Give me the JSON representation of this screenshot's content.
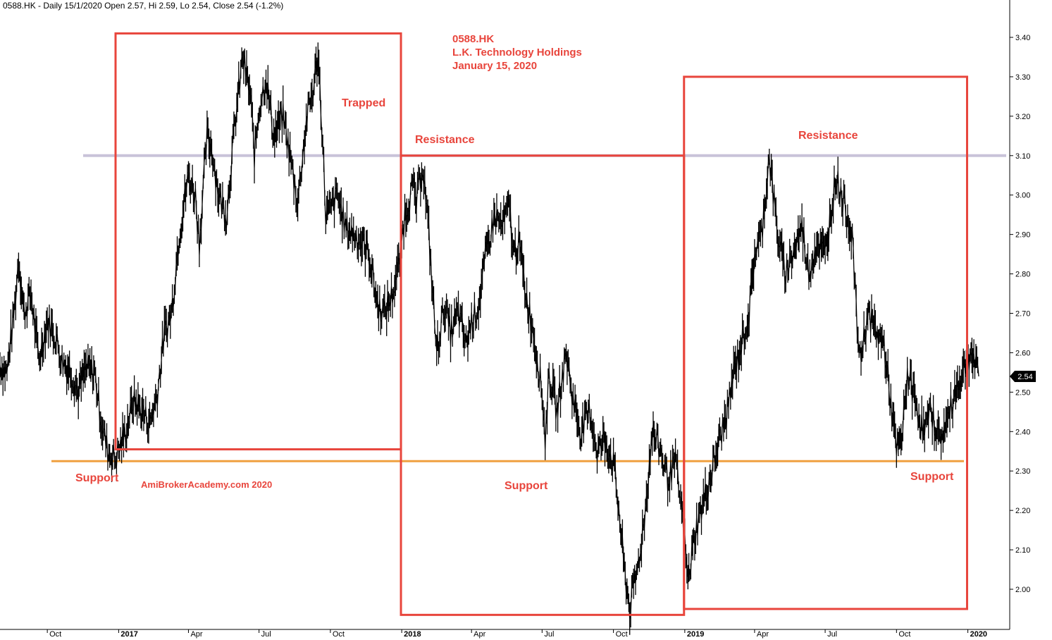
{
  "header": "0588.HK - Daily 15/1/2020 Open 2.57, Hi 2.59, Lo 2.54, Close 2.54 (-1.2%)",
  "annotations": {
    "ticker": "0588.HK",
    "company": "L.K. Technology Holdings",
    "date": "January 15, 2020",
    "watermark": "AmiBrokerAcademy.com   2020",
    "trapped": "Trapped",
    "resistance": "Resistance",
    "support": "Support"
  },
  "colors": {
    "box": "#e8453c",
    "resistance_line": "#c9c3d9",
    "support_line": "#f0a040",
    "price": "#000000",
    "text": "#e8453c"
  },
  "chart_data": {
    "type": "line",
    "title": "0588.HK",
    "y_axis": {
      "range": [
        1.93,
        3.45
      ],
      "ticks": [
        "2.00",
        "2.10",
        "2.20",
        "2.30",
        "2.40",
        "2.50",
        "2.60",
        "2.70",
        "2.80",
        "2.90",
        "3.00",
        "3.10",
        "3.20",
        "3.30",
        "3.40"
      ]
    },
    "x_axis": {
      "range": [
        "2016-08-01",
        "2020-01-25"
      ],
      "ticks": [
        {
          "label": "Oct",
          "date": "2016-10-01",
          "year": false
        },
        {
          "label": "2017",
          "date": "2017-01-01",
          "year": true
        },
        {
          "label": "Apr",
          "date": "2017-04-01",
          "year": false
        },
        {
          "label": "Jul",
          "date": "2017-07-01",
          "year": false
        },
        {
          "label": "Oct",
          "date": "2017-10-01",
          "year": false
        },
        {
          "label": "2018",
          "date": "2018-01-01",
          "year": true
        },
        {
          "label": "Apr",
          "date": "2018-04-01",
          "year": false
        },
        {
          "label": "Jul",
          "date": "2018-07-01",
          "year": false
        },
        {
          "label": "Oct",
          "date": "2018-10-01",
          "year": false
        },
        {
          "label": "2019",
          "date": "2019-01-01",
          "year": true
        },
        {
          "label": "Apr",
          "date": "2019-04-01",
          "year": false
        },
        {
          "label": "Jul",
          "date": "2019-07-01",
          "year": false
        },
        {
          "label": "Oct",
          "date": "2019-10-01",
          "year": false
        },
        {
          "label": "2020",
          "date": "2020-01-01",
          "year": true
        }
      ]
    },
    "last_price": "2.54",
    "series": [
      {
        "points": [
          [
            "2016-08-01",
            2.57
          ],
          [
            "2016-08-10",
            2.55
          ],
          [
            "2016-08-20",
            2.72
          ],
          [
            "2016-08-25",
            2.84
          ],
          [
            "2016-09-01",
            2.7
          ],
          [
            "2016-09-10",
            2.75
          ],
          [
            "2016-09-20",
            2.58
          ],
          [
            "2016-10-01",
            2.68
          ],
          [
            "2016-10-10",
            2.65
          ],
          [
            "2016-10-20",
            2.58
          ],
          [
            "2016-11-01",
            2.55
          ],
          [
            "2016-11-10",
            2.5
          ],
          [
            "2016-11-20",
            2.56
          ],
          [
            "2016-12-01",
            2.55
          ],
          [
            "2016-12-10",
            2.42
          ],
          [
            "2016-12-18",
            2.35
          ],
          [
            "2016-12-28",
            2.33
          ],
          [
            "2017-01-10",
            2.4
          ],
          [
            "2017-01-20",
            2.48
          ],
          [
            "2017-02-01",
            2.45
          ],
          [
            "2017-02-10",
            2.42
          ],
          [
            "2017-02-20",
            2.5
          ],
          [
            "2017-03-01",
            2.65
          ],
          [
            "2017-03-10",
            2.7
          ],
          [
            "2017-03-20",
            2.9
          ],
          [
            "2017-04-01",
            3.05
          ],
          [
            "2017-04-10",
            3.0
          ],
          [
            "2017-04-15",
            2.88
          ],
          [
            "2017-04-25",
            3.15
          ],
          [
            "2017-05-01",
            3.12
          ],
          [
            "2017-05-10",
            3.0
          ],
          [
            "2017-05-20",
            2.95
          ],
          [
            "2017-06-01",
            3.2
          ],
          [
            "2017-06-10",
            3.35
          ],
          [
            "2017-06-20",
            3.25
          ],
          [
            "2017-06-25",
            3.1
          ],
          [
            "2017-07-01",
            3.22
          ],
          [
            "2017-07-10",
            3.3
          ],
          [
            "2017-07-20",
            3.15
          ],
          [
            "2017-08-01",
            3.2
          ],
          [
            "2017-08-10",
            3.1
          ],
          [
            "2017-08-20",
            2.98
          ],
          [
            "2017-08-25",
            3.08
          ],
          [
            "2017-09-01",
            3.2
          ],
          [
            "2017-09-10",
            3.28
          ],
          [
            "2017-09-15",
            3.36
          ],
          [
            "2017-09-20",
            3.18
          ],
          [
            "2017-09-25",
            2.95
          ],
          [
            "2017-10-01",
            2.96
          ],
          [
            "2017-10-10",
            3.0
          ],
          [
            "2017-10-20",
            2.92
          ],
          [
            "2017-11-01",
            2.9
          ],
          [
            "2017-11-10",
            2.88
          ],
          [
            "2017-11-20",
            2.85
          ],
          [
            "2017-12-01",
            2.72
          ],
          [
            "2017-12-10",
            2.7
          ],
          [
            "2017-12-20",
            2.75
          ],
          [
            "2017-12-28",
            2.82
          ],
          [
            "2018-01-05",
            2.95
          ],
          [
            "2018-01-15",
            3.02
          ],
          [
            "2018-01-20",
            2.98
          ],
          [
            "2018-01-28",
            3.08
          ],
          [
            "2018-02-05",
            2.9
          ],
          [
            "2018-02-10",
            2.75
          ],
          [
            "2018-02-15",
            2.6
          ],
          [
            "2018-02-25",
            2.72
          ],
          [
            "2018-03-05",
            2.65
          ],
          [
            "2018-03-15",
            2.7
          ],
          [
            "2018-03-25",
            2.62
          ],
          [
            "2018-04-01",
            2.68
          ],
          [
            "2018-04-10",
            2.72
          ],
          [
            "2018-04-20",
            2.85
          ],
          [
            "2018-05-01",
            2.95
          ],
          [
            "2018-05-10",
            2.92
          ],
          [
            "2018-05-20",
            2.97
          ],
          [
            "2018-05-25",
            2.85
          ],
          [
            "2018-06-01",
            2.88
          ],
          [
            "2018-06-10",
            2.75
          ],
          [
            "2018-06-20",
            2.65
          ],
          [
            "2018-07-01",
            2.5
          ],
          [
            "2018-07-05",
            2.38
          ],
          [
            "2018-07-10",
            2.55
          ],
          [
            "2018-07-20",
            2.45
          ],
          [
            "2018-08-01",
            2.6
          ],
          [
            "2018-08-10",
            2.48
          ],
          [
            "2018-08-20",
            2.4
          ],
          [
            "2018-09-01",
            2.45
          ],
          [
            "2018-09-10",
            2.35
          ],
          [
            "2018-09-20",
            2.38
          ],
          [
            "2018-10-01",
            2.32
          ],
          [
            "2018-10-08",
            2.2
          ],
          [
            "2018-10-15",
            2.05
          ],
          [
            "2018-10-22",
            1.95
          ],
          [
            "2018-11-01",
            2.05
          ],
          [
            "2018-11-10",
            2.18
          ],
          [
            "2018-11-20",
            2.4
          ],
          [
            "2018-12-01",
            2.35
          ],
          [
            "2018-12-10",
            2.28
          ],
          [
            "2018-12-20",
            2.32
          ],
          [
            "2018-12-28",
            2.2
          ],
          [
            "2019-01-05",
            2.02
          ],
          [
            "2019-01-15",
            2.15
          ],
          [
            "2019-01-25",
            2.22
          ],
          [
            "2019-02-05",
            2.3
          ],
          [
            "2019-02-15",
            2.38
          ],
          [
            "2019-02-25",
            2.45
          ],
          [
            "2019-03-05",
            2.55
          ],
          [
            "2019-03-15",
            2.62
          ],
          [
            "2019-03-25",
            2.7
          ],
          [
            "2019-04-01",
            2.85
          ],
          [
            "2019-04-10",
            2.9
          ],
          [
            "2019-04-20",
            3.1
          ],
          [
            "2019-04-25",
            3.0
          ],
          [
            "2019-05-01",
            2.9
          ],
          [
            "2019-05-10",
            2.8
          ],
          [
            "2019-05-20",
            2.85
          ],
          [
            "2019-06-01",
            2.92
          ],
          [
            "2019-06-10",
            2.8
          ],
          [
            "2019-06-20",
            2.88
          ],
          [
            "2019-07-01",
            2.85
          ],
          [
            "2019-07-08",
            2.95
          ],
          [
            "2019-07-15",
            3.05
          ],
          [
            "2019-07-25",
            2.98
          ],
          [
            "2019-08-05",
            2.9
          ],
          [
            "2019-08-10",
            2.7
          ],
          [
            "2019-08-15",
            2.58
          ],
          [
            "2019-08-25",
            2.7
          ],
          [
            "2019-09-05",
            2.65
          ],
          [
            "2019-09-15",
            2.62
          ],
          [
            "2019-09-25",
            2.45
          ],
          [
            "2019-10-01",
            2.35
          ],
          [
            "2019-10-08",
            2.38
          ],
          [
            "2019-10-15",
            2.55
          ],
          [
            "2019-10-25",
            2.48
          ],
          [
            "2019-11-05",
            2.4
          ],
          [
            "2019-11-15",
            2.45
          ],
          [
            "2019-11-25",
            2.38
          ],
          [
            "2019-12-05",
            2.42
          ],
          [
            "2019-12-15",
            2.5
          ],
          [
            "2019-12-25",
            2.55
          ],
          [
            "2020-01-05",
            2.6
          ],
          [
            "2020-01-15",
            2.54
          ]
        ]
      }
    ],
    "levels": {
      "resistance": 3.1,
      "support": 2.325
    },
    "zones": [
      {
        "start": "2016-12-28",
        "end": "2017-12-31",
        "low": 2.355,
        "high": 3.41
      },
      {
        "start": "2017-12-31",
        "end": "2018-12-31",
        "low": 1.935,
        "high": 3.1
      },
      {
        "start": "2018-12-31",
        "end": "2019-12-31",
        "low": 1.95,
        "high": 3.3
      }
    ]
  }
}
